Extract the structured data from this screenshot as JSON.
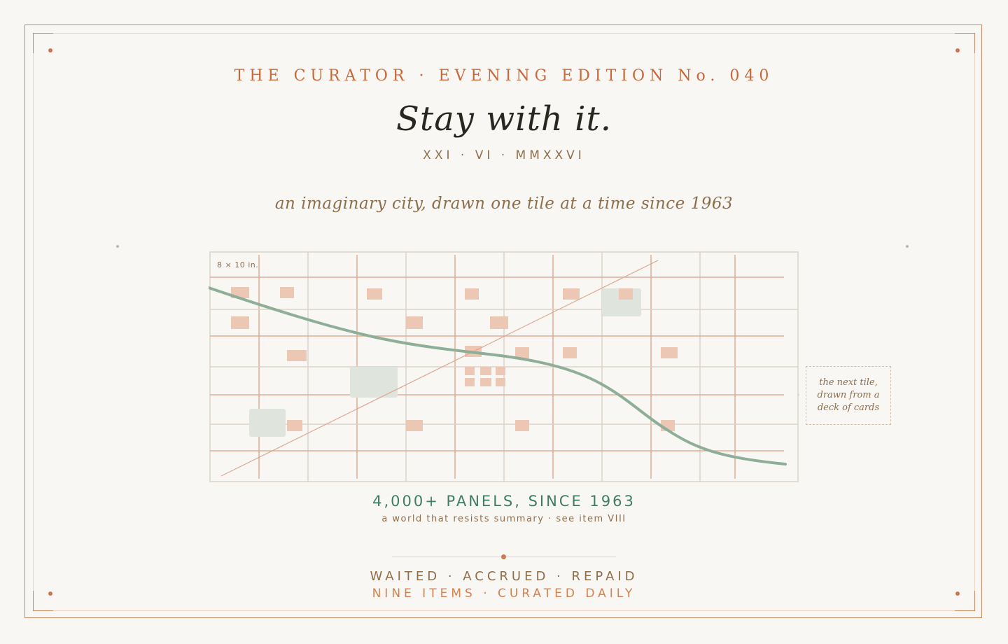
{
  "colors": {
    "accent": "#c8683a",
    "frame": "#c98a63",
    "ink": "#2a2620",
    "muted": "#8d6e4c",
    "green": "#3f7d62",
    "curve": "#8fae98",
    "tile": "#ecc7b4",
    "park": "#dfe4dc"
  },
  "header": {
    "edition": "THE CURATOR · EVENING EDITION No. 040",
    "title": "Stay with it.",
    "date": "XXI · VI · MMXXVI",
    "tagline": "an imaginary city, drawn one tile at a time since 1963"
  },
  "map": {
    "size_label": "8 × 10 in.",
    "note": "the next tile, drawn from a deck of cards"
  },
  "caption": {
    "headline": "4,000+ PANELS, SINCE 1963",
    "subline": "a world that resists summary · see item VIII"
  },
  "footer": {
    "line1": "WAITED · ACCRUED · REPAID",
    "line2": "NINE ITEMS · CURATED DAILY"
  }
}
